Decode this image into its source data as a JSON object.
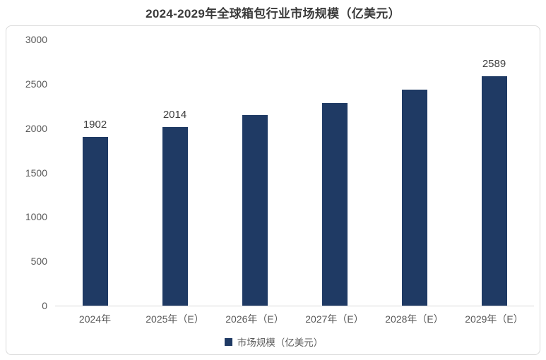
{
  "page": {
    "title": "2024-2029年全球箱包行业市场规模（亿美元）"
  },
  "chart_data": {
    "type": "bar",
    "title": "2024-2029年全球箱包行业市场规模（亿美元）",
    "categories": [
      "2024年",
      "2025年（E）",
      "2026年（E）",
      "2027年（E）",
      "2028年（E）",
      "2029年（E）"
    ],
    "values": [
      1902,
      2014,
      2145,
      2285,
      2435,
      2589
    ],
    "data_labels": [
      "1902",
      "2014",
      null,
      null,
      null,
      "2589"
    ],
    "values_note": "bars for 2026-2028 are unlabeled in the chart; their values are estimated from bar heights",
    "xlabel": "",
    "ylabel": "",
    "yticks": [
      0,
      500,
      1000,
      1500,
      2000,
      2500,
      3000
    ],
    "ylim": [
      0,
      3000
    ],
    "grid": false,
    "legend": {
      "label": "市场规模（亿美元）",
      "position": "bottom"
    },
    "colors": {
      "bar": "#1f3a64",
      "title_text": "#3a3a3a",
      "axis_text": "#595959",
      "data_label_text": "#404040",
      "card_border": "#d9d9d9",
      "axis_line": "#d9d9d9",
      "background": "#ffffff"
    }
  }
}
